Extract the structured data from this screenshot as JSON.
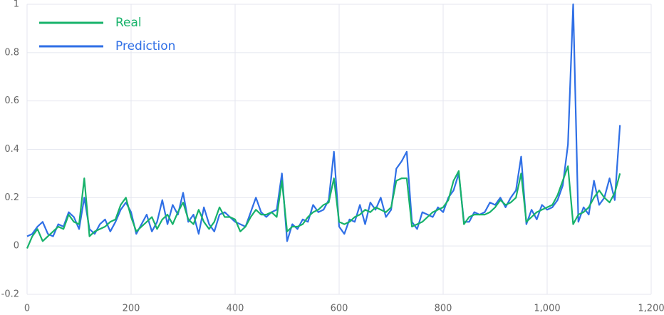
{
  "chart_data": {
    "type": "line",
    "x": [
      0,
      10,
      20,
      30,
      40,
      50,
      60,
      70,
      80,
      90,
      100,
      110,
      120,
      130,
      140,
      150,
      160,
      170,
      180,
      190,
      200,
      210,
      220,
      230,
      240,
      250,
      260,
      270,
      280,
      290,
      300,
      310,
      320,
      330,
      340,
      350,
      360,
      370,
      380,
      390,
      400,
      410,
      420,
      430,
      440,
      450,
      460,
      470,
      480,
      490,
      500,
      510,
      520,
      530,
      540,
      550,
      560,
      570,
      580,
      590,
      600,
      610,
      620,
      630,
      640,
      650,
      660,
      670,
      680,
      690,
      700,
      710,
      720,
      730,
      740,
      750,
      760,
      770,
      780,
      790,
      800,
      810,
      820,
      830,
      840,
      850,
      860,
      870,
      880,
      890,
      900,
      910,
      920,
      930,
      940,
      950,
      960,
      970,
      980,
      990,
      1000,
      1010,
      1020,
      1030,
      1040,
      1050,
      1060,
      1070,
      1080,
      1090,
      1100,
      1110,
      1120,
      1130,
      1140
    ],
    "series": [
      {
        "name": "Prediction",
        "color": "#2f6fe6",
        "values": [
          0.04,
          0.05,
          0.08,
          0.1,
          0.05,
          0.04,
          0.09,
          0.08,
          0.14,
          0.12,
          0.07,
          0.2,
          0.07,
          0.05,
          0.09,
          0.11,
          0.06,
          0.1,
          0.15,
          0.18,
          0.14,
          0.05,
          0.09,
          0.13,
          0.06,
          0.1,
          0.19,
          0.09,
          0.17,
          0.13,
          0.22,
          0.1,
          0.13,
          0.05,
          0.16,
          0.09,
          0.06,
          0.13,
          0.14,
          0.12,
          0.1,
          0.09,
          0.08,
          0.14,
          0.2,
          0.14,
          0.12,
          0.14,
          0.15,
          0.3,
          0.02,
          0.09,
          0.07,
          0.11,
          0.1,
          0.17,
          0.14,
          0.15,
          0.19,
          0.39,
          0.08,
          0.05,
          0.11,
          0.1,
          0.17,
          0.09,
          0.18,
          0.15,
          0.2,
          0.12,
          0.15,
          0.32,
          0.35,
          0.39,
          0.1,
          0.07,
          0.14,
          0.13,
          0.12,
          0.16,
          0.14,
          0.2,
          0.23,
          0.3,
          0.1,
          0.1,
          0.14,
          0.13,
          0.14,
          0.18,
          0.17,
          0.2,
          0.16,
          0.2,
          0.23,
          0.37,
          0.09,
          0.15,
          0.11,
          0.17,
          0.15,
          0.16,
          0.19,
          0.25,
          0.42,
          1.0,
          0.1,
          0.16,
          0.13,
          0.27,
          0.17,
          0.2,
          0.28,
          0.19,
          0.5
        ]
      },
      {
        "name": "Real",
        "color": "#17b26a",
        "values": [
          -0.01,
          0.04,
          0.07,
          0.02,
          0.04,
          0.06,
          0.08,
          0.07,
          0.13,
          0.1,
          0.09,
          0.28,
          0.04,
          0.06,
          0.07,
          0.08,
          0.1,
          0.11,
          0.17,
          0.2,
          0.12,
          0.06,
          0.08,
          0.1,
          0.12,
          0.07,
          0.11,
          0.13,
          0.09,
          0.14,
          0.18,
          0.11,
          0.09,
          0.15,
          0.1,
          0.07,
          0.1,
          0.16,
          0.12,
          0.12,
          0.11,
          0.06,
          0.08,
          0.12,
          0.15,
          0.13,
          0.13,
          0.14,
          0.12,
          0.27,
          0.06,
          0.08,
          0.08,
          0.09,
          0.12,
          0.14,
          0.15,
          0.17,
          0.18,
          0.28,
          0.1,
          0.09,
          0.1,
          0.12,
          0.13,
          0.15,
          0.14,
          0.16,
          0.15,
          0.14,
          0.16,
          0.27,
          0.28,
          0.28,
          0.08,
          0.09,
          0.1,
          0.12,
          0.14,
          0.15,
          0.16,
          0.19,
          0.27,
          0.31,
          0.09,
          0.12,
          0.13,
          0.13,
          0.13,
          0.14,
          0.16,
          0.19,
          0.17,
          0.18,
          0.2,
          0.3,
          0.1,
          0.12,
          0.14,
          0.15,
          0.16,
          0.17,
          0.21,
          0.27,
          0.33,
          0.09,
          0.13,
          0.14,
          0.16,
          0.2,
          0.23,
          0.2,
          0.18,
          0.22,
          0.3
        ]
      }
    ],
    "legend_order": [
      1,
      0
    ],
    "legend": "top-left",
    "xlim": [
      0,
      1200
    ],
    "xticks": [
      0,
      200,
      400,
      600,
      800,
      {
        "value": 1000,
        "label": "1,000"
      },
      {
        "value": 1200,
        "label": "1,200"
      }
    ],
    "ylim": [
      -0.2,
      1
    ],
    "yticks": [
      -0.2,
      0,
      0.2,
      0.4,
      0.6,
      0.8,
      1
    ],
    "grid": true
  }
}
